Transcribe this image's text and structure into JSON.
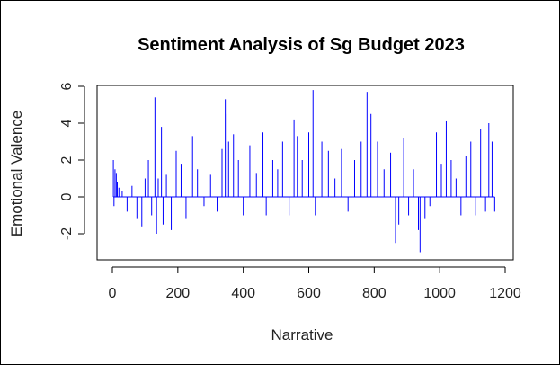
{
  "chart_data": {
    "type": "line",
    "title": "Sentiment Analysis of Sg Budget 2023",
    "xlabel": "Narrative",
    "ylabel": "Emotional Valence",
    "xlim": [
      0,
      1200
    ],
    "ylim": [
      -3,
      6
    ],
    "x_ticks": [
      0,
      200,
      400,
      600,
      800,
      1000,
      1200
    ],
    "y_ticks": [
      -2,
      0,
      2,
      4,
      6
    ],
    "grid": false,
    "series": [
      {
        "color": "#0000ff",
        "render": "vertical-lines-from-zero",
        "x": [
          3,
          5,
          8,
          12,
          15,
          20,
          30,
          45,
          60,
          75,
          90,
          100,
          110,
          120,
          130,
          135,
          140,
          150,
          155,
          165,
          180,
          195,
          210,
          225,
          245,
          260,
          280,
          300,
          320,
          335,
          345,
          350,
          355,
          370,
          385,
          400,
          420,
          440,
          460,
          470,
          490,
          505,
          520,
          540,
          555,
          565,
          580,
          600,
          613,
          620,
          640,
          660,
          680,
          700,
          720,
          740,
          760,
          778,
          790,
          810,
          830,
          850,
          865,
          875,
          890,
          905,
          920,
          935,
          940,
          955,
          970,
          990,
          1005,
          1020,
          1035,
          1050,
          1065,
          1080,
          1095,
          1110,
          1125,
          1140,
          1150,
          1160,
          1168
        ],
        "values": [
          2.0,
          -0.5,
          1.5,
          1.3,
          0.8,
          0.5,
          0.3,
          -0.8,
          0.6,
          -1.2,
          -1.6,
          1.0,
          2.0,
          -1.0,
          5.4,
          -2.0,
          1.0,
          3.8,
          -1.5,
          1.2,
          -1.8,
          2.5,
          1.8,
          -1.2,
          3.3,
          1.5,
          -0.5,
          1.2,
          -0.8,
          2.6,
          5.3,
          4.5,
          3.0,
          3.4,
          2.0,
          -1.0,
          2.8,
          1.3,
          3.5,
          -1.0,
          2.0,
          1.5,
          3.0,
          -1.0,
          4.2,
          3.3,
          2.0,
          3.5,
          5.8,
          -1.0,
          3.0,
          2.5,
          1.0,
          2.6,
          -0.8,
          2.0,
          3.0,
          5.7,
          4.5,
          3.0,
          1.5,
          2.4,
          -2.5,
          -1.5,
          3.2,
          -1.0,
          1.5,
          -1.8,
          -3.0,
          -1.2,
          -0.5,
          3.5,
          1.8,
          4.1,
          2.0,
          1.0,
          -1.0,
          2.2,
          3.0,
          -1.0,
          3.7,
          -0.8,
          4.0,
          3.0,
          -0.8
        ]
      }
    ]
  }
}
